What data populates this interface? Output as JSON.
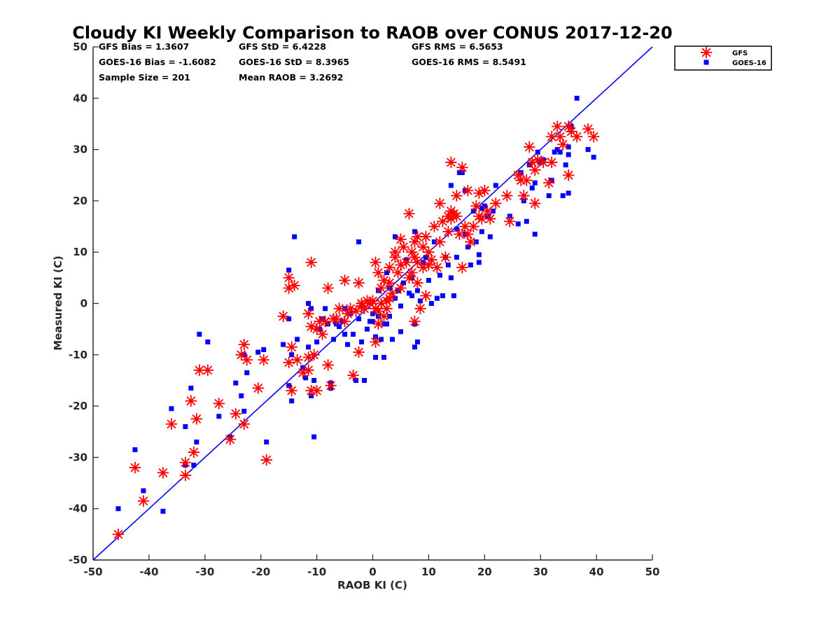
{
  "chart_data": {
    "type": "scatter",
    "title": "Cloudy KI Weekly Comparison to RAOB over CONUS 2017-12-20",
    "xlabel": "RAOB KI (C)",
    "ylabel": "Measured KI (C)",
    "xlim": [
      -50,
      50
    ],
    "ylim": [
      -50,
      50
    ],
    "xticks": [
      "-50",
      "-40",
      "-30",
      "-20",
      "-10",
      "0",
      "10",
      "20",
      "30",
      "40",
      "50"
    ],
    "yticks": [
      "-50",
      "-40",
      "-30",
      "-20",
      "-10",
      "0",
      "10",
      "20",
      "30",
      "40",
      "50"
    ],
    "grid": false,
    "legend_position": "top-right",
    "reference_line": "1:1",
    "colors": {
      "gfs": "#ff0000",
      "goes": "#0000ff",
      "line": "#0000ff"
    },
    "stats": {
      "gfs_bias": "GFS Bias = 1.3607",
      "goes_bias": "GOES-16 Bias = -1.6082",
      "sample_size": "Sample Size = 201",
      "gfs_std": "GFS StD = 6.4228",
      "goes_std": "GOES-16 StD = 8.3965",
      "mean_raob": "Mean RAOB = 3.2692",
      "gfs_rms": "GFS RMS = 6.5653",
      "goes_rms": "GOES-16 RMS = 8.5491"
    },
    "series": [
      {
        "name": "GFS",
        "marker": "asterisk",
        "points": [
          [
            -45.5,
            -45
          ],
          [
            -42.5,
            -32
          ],
          [
            -41,
            -38.5
          ],
          [
            -37.5,
            -33
          ],
          [
            -36,
            -23.5
          ],
          [
            -33.5,
            -33.5
          ],
          [
            -33.5,
            -31
          ],
          [
            -32.5,
            -19
          ],
          [
            -32,
            -29
          ],
          [
            -31.5,
            -22.5
          ],
          [
            -31,
            -13
          ],
          [
            -29.5,
            -13
          ],
          [
            -27.5,
            -19.5
          ],
          [
            -25.5,
            -26.5
          ],
          [
            -24.5,
            -21.5
          ],
          [
            -23.5,
            -10
          ],
          [
            -23,
            -8
          ],
          [
            -23,
            -23.5
          ],
          [
            -22.5,
            -11
          ],
          [
            -20.5,
            -16.5
          ],
          [
            -19.5,
            -11
          ],
          [
            -19,
            -30.5
          ],
          [
            -16,
            -2.5
          ],
          [
            -15,
            -11.5
          ],
          [
            -15,
            3
          ],
          [
            -15,
            5
          ],
          [
            -14.5,
            -8.5
          ],
          [
            -14.5,
            -17
          ],
          [
            -14,
            3.5
          ],
          [
            -13.5,
            -11
          ],
          [
            -12.5,
            -13.5
          ],
          [
            -11.5,
            -10.5
          ],
          [
            -11.5,
            -13
          ],
          [
            -11.5,
            -2
          ],
          [
            -11,
            8
          ],
          [
            -11,
            -4.5
          ],
          [
            -11,
            -17
          ],
          [
            -10.5,
            -10
          ],
          [
            -10,
            -17
          ],
          [
            -10,
            -5
          ],
          [
            -9.5,
            -3.5
          ],
          [
            -9,
            -6
          ],
          [
            -8.5,
            -3.5
          ],
          [
            -8,
            3
          ],
          [
            -8,
            -12
          ],
          [
            -7.5,
            -16
          ],
          [
            -7,
            -3
          ],
          [
            -6.5,
            -3
          ],
          [
            -6,
            -1
          ],
          [
            -5,
            4.5
          ],
          [
            -5,
            -3.5
          ],
          [
            -4.5,
            -2
          ],
          [
            -4,
            -1
          ],
          [
            -3.5,
            -14
          ],
          [
            -3,
            -1.5
          ],
          [
            -2.5,
            4
          ],
          [
            -2.5,
            -9.5
          ],
          [
            -2,
            0
          ],
          [
            -2,
            -0.5
          ],
          [
            -1.5,
            -1
          ],
          [
            -1,
            0.5
          ],
          [
            -0.5,
            0
          ],
          [
            0,
            0.5
          ],
          [
            0.5,
            8
          ],
          [
            0.5,
            -1
          ],
          [
            0.5,
            -7.5
          ],
          [
            1,
            6
          ],
          [
            1,
            -1.5
          ],
          [
            1,
            -4
          ],
          [
            1.5,
            3
          ],
          [
            1.5,
            0
          ],
          [
            2,
            4.5
          ],
          [
            2,
            -2.5
          ],
          [
            2.5,
            0.5
          ],
          [
            2.5,
            -1
          ],
          [
            3,
            4
          ],
          [
            3,
            7
          ],
          [
            3,
            1
          ],
          [
            3.5,
            2
          ],
          [
            4,
            10
          ],
          [
            4,
            9
          ],
          [
            4.5,
            6
          ],
          [
            5,
            7.5
          ],
          [
            5,
            3
          ],
          [
            5,
            12.5
          ],
          [
            5.5,
            11
          ],
          [
            6,
            8
          ],
          [
            6.5,
            17.5
          ],
          [
            6.5,
            5
          ],
          [
            7,
            10
          ],
          [
            7,
            6
          ],
          [
            7.5,
            12
          ],
          [
            7.5,
            -3.5
          ],
          [
            7.5,
            9
          ],
          [
            8,
            13
          ],
          [
            8,
            8
          ],
          [
            8,
            4
          ],
          [
            8.5,
            -1
          ],
          [
            9,
            11
          ],
          [
            9,
            7
          ],
          [
            9.5,
            1.5
          ],
          [
            9.5,
            13
          ],
          [
            10,
            10
          ],
          [
            10,
            7.5
          ],
          [
            10.5,
            8.5
          ],
          [
            11,
            15
          ],
          [
            11.5,
            7
          ],
          [
            12,
            19.5
          ],
          [
            12,
            12
          ],
          [
            12.5,
            16
          ],
          [
            13,
            9
          ],
          [
            13.5,
            17
          ],
          [
            13.5,
            14
          ],
          [
            14,
            27.5
          ],
          [
            14,
            18
          ],
          [
            14,
            16.5
          ],
          [
            14.5,
            17.5
          ],
          [
            15,
            17
          ],
          [
            15,
            21
          ],
          [
            15.5,
            13.5
          ],
          [
            16,
            7
          ],
          [
            16,
            26.5
          ],
          [
            16.5,
            15
          ],
          [
            17,
            22
          ],
          [
            17,
            13.5
          ],
          [
            17.5,
            12
          ],
          [
            18,
            15
          ],
          [
            18.5,
            19
          ],
          [
            19,
            21.5
          ],
          [
            19,
            17
          ],
          [
            19.5,
            16.5
          ],
          [
            20,
            22
          ],
          [
            20.5,
            18
          ],
          [
            21,
            16.5
          ],
          [
            22,
            19.5
          ],
          [
            24,
            21
          ],
          [
            24.5,
            16
          ],
          [
            26,
            25
          ],
          [
            26.5,
            24
          ],
          [
            27,
            21
          ],
          [
            27.5,
            24
          ],
          [
            28,
            30.5
          ],
          [
            28.5,
            27.5
          ],
          [
            29,
            26
          ],
          [
            29,
            19.5
          ],
          [
            29.5,
            28
          ],
          [
            30.5,
            27.5
          ],
          [
            31.5,
            23.5
          ],
          [
            32,
            32.5
          ],
          [
            32,
            27.5
          ],
          [
            33,
            34.5
          ],
          [
            33.5,
            32.5
          ],
          [
            34,
            31
          ],
          [
            35,
            34.5
          ],
          [
            35,
            25
          ],
          [
            35.5,
            33.5
          ],
          [
            36.5,
            32.5
          ],
          [
            38.5,
            34
          ],
          [
            39.5,
            32.5
          ]
        ]
      },
      {
        "name": "GOES-16",
        "marker": "square",
        "points": [
          [
            -45.5,
            -40
          ],
          [
            -42.5,
            -28.5
          ],
          [
            -41,
            -36.5
          ],
          [
            -37.5,
            -40.5
          ],
          [
            -36,
            -20.5
          ],
          [
            -33.5,
            -24
          ],
          [
            -33.5,
            -31.5
          ],
          [
            -32.5,
            -16.5
          ],
          [
            -32,
            -31.5
          ],
          [
            -31.5,
            -27
          ],
          [
            -31,
            -6
          ],
          [
            -29.5,
            -7.5
          ],
          [
            -27.5,
            -22
          ],
          [
            -25.5,
            -26
          ],
          [
            -24.5,
            -15.5
          ],
          [
            -23.5,
            -18
          ],
          [
            -23,
            -10
          ],
          [
            -23,
            -21
          ],
          [
            -22.5,
            -13.5
          ],
          [
            -20.5,
            -9.5
          ],
          [
            -19.5,
            -9
          ],
          [
            -19,
            -27
          ],
          [
            -16,
            -8
          ],
          [
            -15,
            -16
          ],
          [
            -15,
            6.5
          ],
          [
            -15,
            -3
          ],
          [
            -14.5,
            -10
          ],
          [
            -14.5,
            -19
          ],
          [
            -14,
            13
          ],
          [
            -13.5,
            -7
          ],
          [
            -12.5,
            -12.5
          ],
          [
            -12,
            -14.5
          ],
          [
            -11.5,
            -8.5
          ],
          [
            -11.5,
            0
          ],
          [
            -11,
            -18
          ],
          [
            -11,
            -1
          ],
          [
            -10.5,
            -15
          ],
          [
            -10.5,
            -26
          ],
          [
            -10,
            -7.5
          ],
          [
            -9.5,
            -5
          ],
          [
            -9,
            -3
          ],
          [
            -8.5,
            -1
          ],
          [
            -8,
            -4
          ],
          [
            -7.5,
            -15.5
          ],
          [
            -7.5,
            -16.5
          ],
          [
            -7,
            -7
          ],
          [
            -6.5,
            -4
          ],
          [
            -6,
            -4.5
          ],
          [
            -5.5,
            -3.5
          ],
          [
            -5,
            -1
          ],
          [
            -5,
            -6
          ],
          [
            -4.5,
            -8
          ],
          [
            -4,
            -2
          ],
          [
            -3.5,
            -6
          ],
          [
            -3,
            -15
          ],
          [
            -2.5,
            12
          ],
          [
            -2.5,
            -3
          ],
          [
            -2,
            -7.5
          ],
          [
            -1.5,
            -15
          ],
          [
            -1,
            -5
          ],
          [
            -0.5,
            -3.5
          ],
          [
            0,
            -2
          ],
          [
            0,
            -3.5
          ],
          [
            0.5,
            -6.5
          ],
          [
            0.5,
            -10.5
          ],
          [
            1,
            2.5
          ],
          [
            1,
            -2.5
          ],
          [
            1.5,
            -7
          ],
          [
            2,
            -4
          ],
          [
            2,
            -10.5
          ],
          [
            2.5,
            6
          ],
          [
            2.5,
            -4
          ],
          [
            3,
            3
          ],
          [
            3,
            -2.5
          ],
          [
            3.5,
            -7
          ],
          [
            4,
            13
          ],
          [
            4,
            1
          ],
          [
            4.5,
            2.5
          ],
          [
            5,
            -5.5
          ],
          [
            5,
            -0.5
          ],
          [
            5.5,
            4
          ],
          [
            6,
            8.5
          ],
          [
            6.5,
            2
          ],
          [
            7,
            5
          ],
          [
            7,
            1.5
          ],
          [
            7.5,
            -8.5
          ],
          [
            7.5,
            14
          ],
          [
            7.5,
            -4
          ],
          [
            8,
            -7.5
          ],
          [
            8,
            2.5
          ],
          [
            8.5,
            0.5
          ],
          [
            9,
            8
          ],
          [
            9.5,
            9
          ],
          [
            10,
            4.5
          ],
          [
            10.5,
            0
          ],
          [
            11,
            12
          ],
          [
            11.5,
            1
          ],
          [
            12,
            5.5
          ],
          [
            12.5,
            1.5
          ],
          [
            13,
            9
          ],
          [
            13.5,
            7.5
          ],
          [
            14,
            5
          ],
          [
            14,
            23
          ],
          [
            14.5,
            1.5
          ],
          [
            15,
            9
          ],
          [
            15,
            14.5
          ],
          [
            15.5,
            25.5
          ],
          [
            16,
            25.5
          ],
          [
            16.5,
            22
          ],
          [
            16.5,
            13.5
          ],
          [
            17,
            11
          ],
          [
            17.5,
            7.5
          ],
          [
            18,
            18
          ],
          [
            18.5,
            12
          ],
          [
            19,
            9.5
          ],
          [
            19,
            8
          ],
          [
            19.5,
            14
          ],
          [
            19.5,
            18.5
          ],
          [
            20,
            19
          ],
          [
            20.5,
            17
          ],
          [
            21,
            13
          ],
          [
            21.5,
            18
          ],
          [
            22,
            23
          ],
          [
            24.5,
            17
          ],
          [
            26,
            15.5
          ],
          [
            26.5,
            25.5
          ],
          [
            27,
            20
          ],
          [
            27.5,
            16
          ],
          [
            28,
            27
          ],
          [
            28.5,
            22.5
          ],
          [
            29,
            23.5
          ],
          [
            29,
            13.5
          ],
          [
            29.5,
            29.5
          ],
          [
            30,
            27.5
          ],
          [
            30.5,
            28
          ],
          [
            31.5,
            21
          ],
          [
            32,
            24
          ],
          [
            32.5,
            29.5
          ],
          [
            33,
            30
          ],
          [
            33.5,
            29.5
          ],
          [
            34,
            21
          ],
          [
            34.5,
            27
          ],
          [
            35,
            30.5
          ],
          [
            35,
            29
          ],
          [
            35,
            21.5
          ],
          [
            35.5,
            34.5
          ],
          [
            36.5,
            40
          ],
          [
            38.5,
            30
          ],
          [
            39.5,
            28.5
          ]
        ]
      }
    ]
  }
}
